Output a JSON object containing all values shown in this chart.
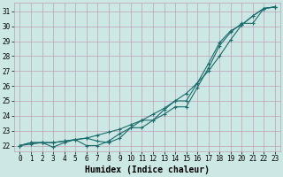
{
  "title": "",
  "xlabel": "Humidex (Indice chaleur)",
  "ylabel": "",
  "bg_color": "#cce8e4",
  "grid_color": "#c0a0b8",
  "line_color": "#1a6b6b",
  "xlim": [
    -0.5,
    23.5
  ],
  "ylim": [
    21.6,
    31.6
  ],
  "yticks": [
    22,
    23,
    24,
    25,
    26,
    27,
    28,
    29,
    30,
    31
  ],
  "xticks": [
    0,
    1,
    2,
    3,
    4,
    5,
    6,
    7,
    8,
    9,
    10,
    11,
    12,
    13,
    14,
    15,
    16,
    17,
    18,
    19,
    20,
    21,
    22,
    23
  ],
  "line1_x": [
    0,
    1,
    2,
    3,
    4,
    5,
    6,
    7,
    8,
    9,
    10,
    11,
    12,
    13,
    14,
    15,
    16,
    17,
    18,
    19,
    20,
    21,
    22,
    23
  ],
  "line1_y": [
    22.0,
    22.2,
    22.2,
    21.9,
    22.2,
    22.4,
    22.0,
    22.0,
    22.3,
    22.8,
    23.2,
    23.2,
    23.7,
    24.1,
    24.6,
    24.6,
    25.9,
    27.2,
    28.7,
    29.6,
    30.2,
    30.2,
    31.2,
    31.3
  ],
  "line2_x": [
    0,
    1,
    2,
    3,
    4,
    5,
    6,
    7,
    8,
    9,
    10,
    11,
    12,
    13,
    14,
    15,
    16,
    17,
    18,
    19,
    20,
    21,
    22,
    23
  ],
  "line2_y": [
    22.0,
    22.2,
    22.2,
    22.2,
    22.3,
    22.4,
    22.5,
    22.7,
    22.9,
    23.1,
    23.4,
    23.7,
    24.1,
    24.5,
    25.0,
    25.5,
    26.2,
    27.0,
    28.0,
    29.1,
    30.1,
    30.7,
    31.2,
    31.3
  ],
  "line3_x": [
    0,
    1,
    2,
    3,
    4,
    5,
    6,
    7,
    8,
    9,
    10,
    11,
    12,
    13,
    14,
    15,
    16,
    17,
    18,
    19,
    20,
    21,
    22,
    23
  ],
  "line3_y": [
    22.0,
    22.1,
    22.2,
    22.2,
    22.3,
    22.4,
    22.5,
    22.3,
    22.2,
    22.5,
    23.2,
    23.7,
    23.7,
    24.4,
    25.0,
    25.0,
    26.2,
    27.5,
    28.9,
    29.7,
    30.1,
    30.7,
    31.2,
    31.3
  ],
  "marker": "+",
  "markersize": 3,
  "markeredgewidth": 0.8,
  "linewidth": 0.8,
  "xlabel_fontsize": 7,
  "tick_fontsize": 5.5
}
